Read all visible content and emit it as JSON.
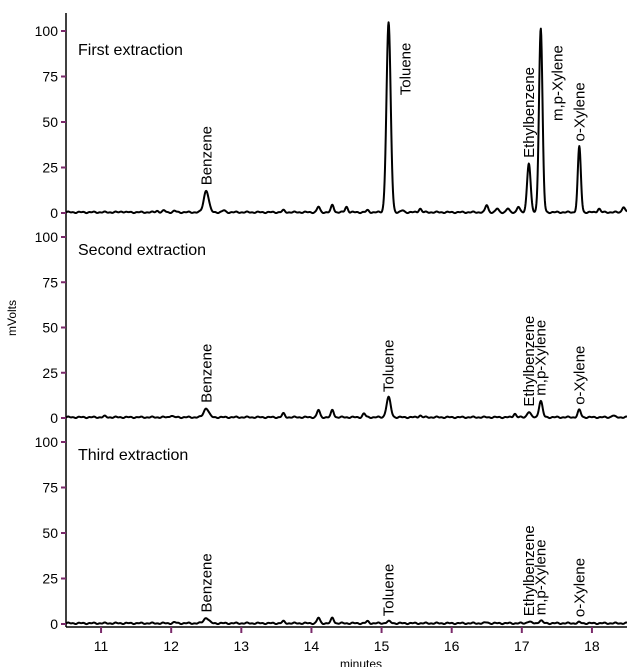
{
  "chart_data": {
    "type": "line",
    "xlabel": "minutes",
    "ylabel": "mVolts",
    "xlim": [
      10.5,
      18.5
    ],
    "ylim": [
      0,
      105
    ],
    "x_ticks": [
      "11",
      "12",
      "13",
      "14",
      "15",
      "16",
      "17",
      "18"
    ],
    "y_ticks": [
      "0",
      "25",
      "50",
      "75",
      "100"
    ],
    "colors": {
      "line": "#000000",
      "tick": "#7a2a6a",
      "axis": "#000000"
    },
    "panels": [
      {
        "title": "First extraction",
        "peaks": [
          {
            "name": "Benzene",
            "x": 12.5,
            "y": 12,
            "width": 0.035
          },
          {
            "name": "Toluene",
            "x": 15.1,
            "y": 104,
            "width": 0.03
          },
          {
            "name": "Ethylbenzene",
            "x": 17.1,
            "y": 27,
            "width": 0.025
          },
          {
            "name": "m,p-Xylene",
            "x": 17.27,
            "y": 101,
            "width": 0.025
          },
          {
            "name": "o-Xylene",
            "x": 17.82,
            "y": 36,
            "width": 0.022
          }
        ],
        "minor_peaks": [
          {
            "x": 11.3,
            "y": 0.5
          },
          {
            "x": 11.8,
            "y": 0.8
          },
          {
            "x": 11.9,
            "y": 0.9
          },
          {
            "x": 12.05,
            "y": 0.7
          },
          {
            "x": 12.75,
            "y": 1
          },
          {
            "x": 13.6,
            "y": 1
          },
          {
            "x": 14.1,
            "y": 3
          },
          {
            "x": 14.3,
            "y": 4
          },
          {
            "x": 14.5,
            "y": 3
          },
          {
            "x": 14.8,
            "y": 1
          },
          {
            "x": 15.3,
            "y": 1
          },
          {
            "x": 15.55,
            "y": 2
          },
          {
            "x": 16.5,
            "y": 4
          },
          {
            "x": 16.65,
            "y": 2
          },
          {
            "x": 16.8,
            "y": 2
          },
          {
            "x": 16.95,
            "y": 3
          },
          {
            "x": 18.1,
            "y": 2
          },
          {
            "x": 18.45,
            "y": 3
          }
        ]
      },
      {
        "title": "Second extraction",
        "peaks": [
          {
            "name": "Benzene",
            "x": 12.5,
            "y": 5,
            "width": 0.035
          },
          {
            "name": "Toluene",
            "x": 15.1,
            "y": 11,
            "width": 0.03
          },
          {
            "name": "Ethylbenzene",
            "x": 17.1,
            "y": 3,
            "width": 0.025
          },
          {
            "name": "m,p-Xylene",
            "x": 17.27,
            "y": 9,
            "width": 0.025
          },
          {
            "name": "o-Xylene",
            "x": 17.82,
            "y": 4,
            "width": 0.022
          }
        ],
        "minor_peaks": [
          {
            "x": 11.05,
            "y": 0.5
          },
          {
            "x": 12.0,
            "y": 1
          },
          {
            "x": 13.6,
            "y": 2
          },
          {
            "x": 14.1,
            "y": 4
          },
          {
            "x": 14.3,
            "y": 4
          },
          {
            "x": 14.75,
            "y": 2
          },
          {
            "x": 15.55,
            "y": 1
          },
          {
            "x": 16.9,
            "y": 2
          },
          {
            "x": 18.3,
            "y": 1
          }
        ]
      },
      {
        "title": "Third extraction",
        "peaks": [
          {
            "name": "Benzene",
            "x": 12.5,
            "y": 3,
            "width": 0.035
          },
          {
            "name": "Toluene",
            "x": 15.1,
            "y": 1,
            "width": 0.03
          },
          {
            "name": "Ethylbenzene",
            "x": 17.1,
            "y": 1,
            "width": 0.025
          },
          {
            "name": "m,p-Xylene",
            "x": 17.27,
            "y": 1.5,
            "width": 0.025
          },
          {
            "name": "o-Xylene",
            "x": 17.82,
            "y": 0.5,
            "width": 0.022
          }
        ],
        "minor_peaks": [
          {
            "x": 12.05,
            "y": 0.5
          },
          {
            "x": 13.6,
            "y": 1
          },
          {
            "x": 14.1,
            "y": 3
          },
          {
            "x": 14.3,
            "y": 3
          },
          {
            "x": 14.8,
            "y": 1
          },
          {
            "x": 16.5,
            "y": 0.5
          }
        ]
      }
    ]
  }
}
